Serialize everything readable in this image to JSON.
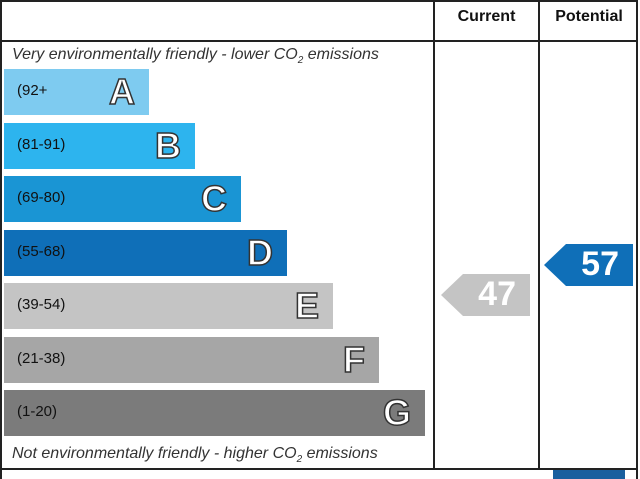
{
  "headers": {
    "current": "Current",
    "potential": "Potential"
  },
  "captions": {
    "top_pre": "Very environmentally friendly - lower CO",
    "top_sub": "2",
    "top_post": " emissions",
    "bottom_pre": "Not environmentally friendly - higher CO",
    "bottom_sub": "2",
    "bottom_post": " emissions"
  },
  "bands": [
    {
      "letter": "A",
      "range": "(92+",
      "color": "#7ecbf0"
    },
    {
      "letter": "B",
      "range": "(81-91)",
      "color": "#2db4ee"
    },
    {
      "letter": "C",
      "range": "(69-80)",
      "color": "#1a95d4"
    },
    {
      "letter": "D",
      "range": "(55-68)",
      "color": "#0f6fb8"
    },
    {
      "letter": "E",
      "range": "(39-54)",
      "color": "#c4c4c4"
    },
    {
      "letter": "F",
      "range": "(21-38)",
      "color": "#a6a6a6"
    },
    {
      "letter": "G",
      "range": "(1-20)",
      "color": "#7b7b7b"
    }
  ],
  "ratings": {
    "current": {
      "value": "47",
      "color": "#c4c4c4"
    },
    "potential": {
      "value": "57",
      "color": "#0f6fb8"
    }
  }
}
